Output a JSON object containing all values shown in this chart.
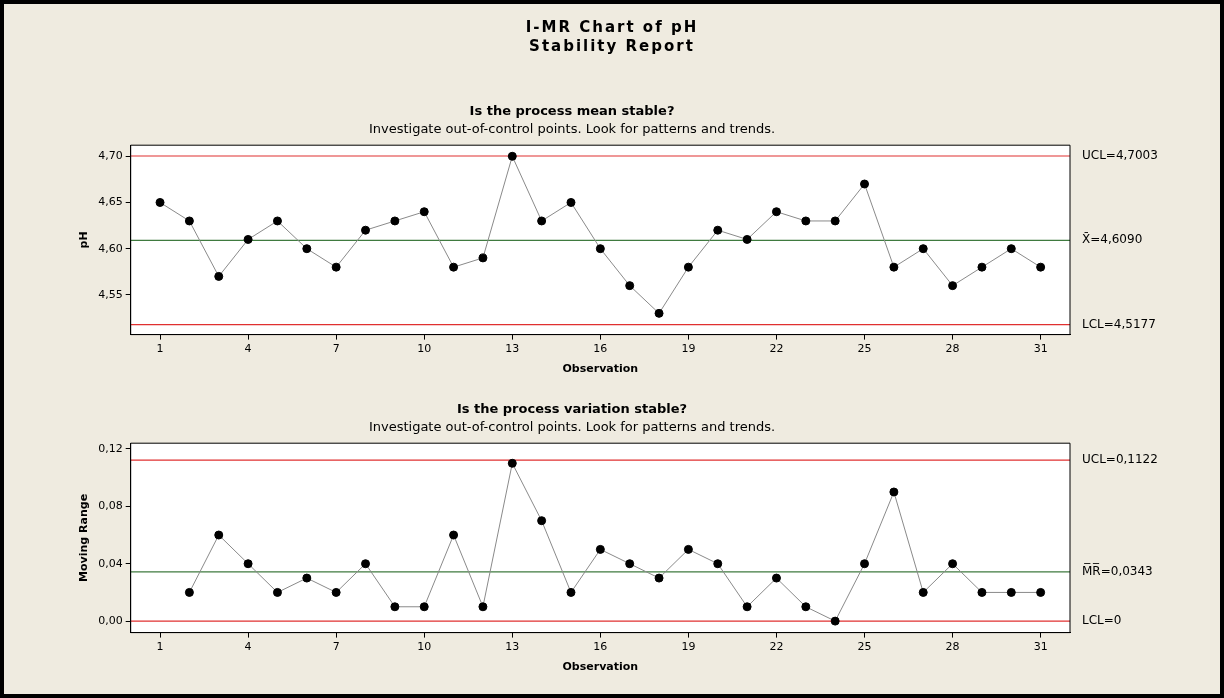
{
  "chart_data": [
    {
      "type": "line",
      "title": "Is the process mean stable?",
      "subtitle": "Investigate out-of-control points. Look for patterns and trends.",
      "annotations": [
        "I-MR Chart of pH",
        "Stability Report"
      ],
      "xlabel": "Observation",
      "ylabel": "pH",
      "x": [
        1,
        2,
        3,
        4,
        5,
        6,
        7,
        8,
        9,
        10,
        11,
        12,
        13,
        14,
        15,
        16,
        17,
        18,
        19,
        20,
        21,
        22,
        23,
        24,
        25,
        26,
        27,
        28,
        29,
        30,
        31
      ],
      "series": [
        {
          "color": "#000000",
          "values": [
            4.65,
            4.63,
            4.57,
            4.61,
            4.63,
            4.6,
            4.58,
            4.62,
            4.63,
            4.64,
            4.58,
            4.59,
            4.7,
            4.63,
            4.65,
            4.6,
            4.56,
            4.53,
            4.58,
            4.62,
            4.61,
            4.64,
            4.63,
            4.63,
            4.67,
            4.58,
            4.6,
            4.56,
            4.58,
            4.6,
            4.58
          ]
        }
      ],
      "xlim": [
        0,
        32
      ],
      "xticks": [
        1,
        4,
        7,
        10,
        13,
        16,
        19,
        22,
        25,
        28,
        31
      ],
      "ylim": [
        4.507,
        4.712
      ],
      "yticks": [
        {
          "value": 4.55,
          "label": "4,55"
        },
        {
          "value": 4.6,
          "label": "4,60"
        },
        {
          "value": 4.65,
          "label": "4,65"
        },
        {
          "value": 4.7,
          "label": "4,70"
        }
      ],
      "ref_lines": [
        {
          "axis": "y",
          "value": 4.7003,
          "label": "UCL=4,7003",
          "color": "#e03030"
        },
        {
          "axis": "y",
          "value": 4.609,
          "label": "X̄=4,6090",
          "color": "#3f7a3f"
        },
        {
          "axis": "y",
          "value": 4.5177,
          "label": "LCL=4,5177",
          "color": "#e03030"
        }
      ],
      "grid": false,
      "legend": false,
      "marker": "circle",
      "line_style": "solid"
    },
    {
      "type": "line",
      "title": "Is the process variation stable?",
      "subtitle": "Investigate out-of-control points. Look for patterns and trends.",
      "xlabel": "Observation",
      "ylabel": "Moving Range",
      "series": [
        {
          "color": "#000000",
          "x": [
            2,
            3,
            4,
            5,
            6,
            7,
            8,
            9,
            10,
            11,
            12,
            13,
            14,
            15,
            16,
            17,
            18,
            19,
            20,
            21,
            22,
            23,
            24,
            25,
            26,
            27,
            28,
            29,
            30,
            31
          ],
          "values": [
            0.02,
            0.06,
            0.04,
            0.02,
            0.03,
            0.02,
            0.04,
            0.01,
            0.01,
            0.06,
            0.01,
            0.11,
            0.07,
            0.02,
            0.05,
            0.04,
            0.03,
            0.05,
            0.04,
            0.01,
            0.03,
            0.01,
            0,
            0.04,
            0.09,
            0.02,
            0.04,
            0.02,
            0.02,
            0.02
          ]
        }
      ],
      "xlim": [
        0,
        32
      ],
      "xticks": [
        1,
        4,
        7,
        10,
        13,
        16,
        19,
        22,
        25,
        28,
        31
      ],
      "ylim": [
        -0.008,
        0.124
      ],
      "yticks": [
        {
          "value": 0,
          "label": "0,00"
        },
        {
          "value": 0.04,
          "label": "0,04"
        },
        {
          "value": 0.08,
          "label": "0,08"
        },
        {
          "value": 0.12,
          "label": "0,12"
        }
      ],
      "ref_lines": [
        {
          "axis": "y",
          "value": 0.1122,
          "label": "UCL=0,1122",
          "color": "#e03030"
        },
        {
          "axis": "y",
          "value": 0.0343,
          "label": "M̅R̅=0,0343",
          "color": "#3f7a3f"
        },
        {
          "axis": "y",
          "value": 0,
          "label": "LCL=0",
          "color": "#e03030"
        }
      ],
      "grid": false,
      "legend": false,
      "marker": "circle",
      "line_style": "solid"
    }
  ]
}
